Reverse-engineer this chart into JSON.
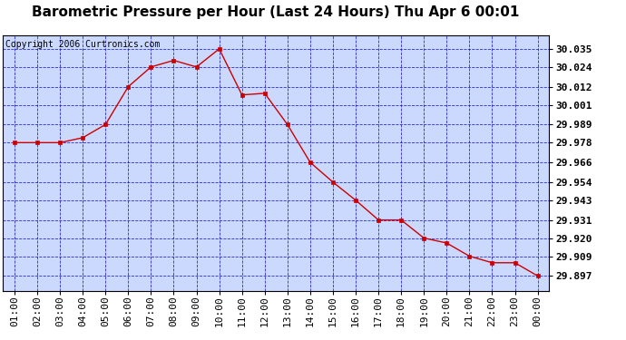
{
  "title": "Barometric Pressure per Hour (Last 24 Hours) Thu Apr 6 00:01",
  "copyright": "Copyright 2006 Curtronics.com",
  "x_labels": [
    "01:00",
    "02:00",
    "03:00",
    "04:00",
    "05:00",
    "06:00",
    "07:00",
    "08:00",
    "09:00",
    "10:00",
    "11:00",
    "12:00",
    "13:00",
    "14:00",
    "15:00",
    "16:00",
    "17:00",
    "18:00",
    "19:00",
    "20:00",
    "21:00",
    "22:00",
    "23:00",
    "00:00"
  ],
  "y_values": [
    29.978,
    29.978,
    29.978,
    29.981,
    29.989,
    30.012,
    30.024,
    30.028,
    30.024,
    30.035,
    30.007,
    30.008,
    29.989,
    29.966,
    29.954,
    29.943,
    29.931,
    29.931,
    29.92,
    29.917,
    29.909,
    29.905,
    29.905,
    29.897
  ],
  "y_ticks": [
    29.897,
    29.909,
    29.92,
    29.931,
    29.943,
    29.954,
    29.966,
    29.978,
    29.989,
    30.001,
    30.012,
    30.024,
    30.035
  ],
  "ylim_min": 29.888,
  "ylim_max": 30.043,
  "line_color": "#cc0000",
  "marker_color": "#cc0000",
  "bg_color": "#ccd9ff",
  "outer_bg_color": "#ffffff",
  "grid_color": "#0000cc",
  "title_fontsize": 11,
  "copyright_fontsize": 7,
  "tick_fontsize": 8,
  "marker_size": 2.5,
  "linewidth": 1.0
}
